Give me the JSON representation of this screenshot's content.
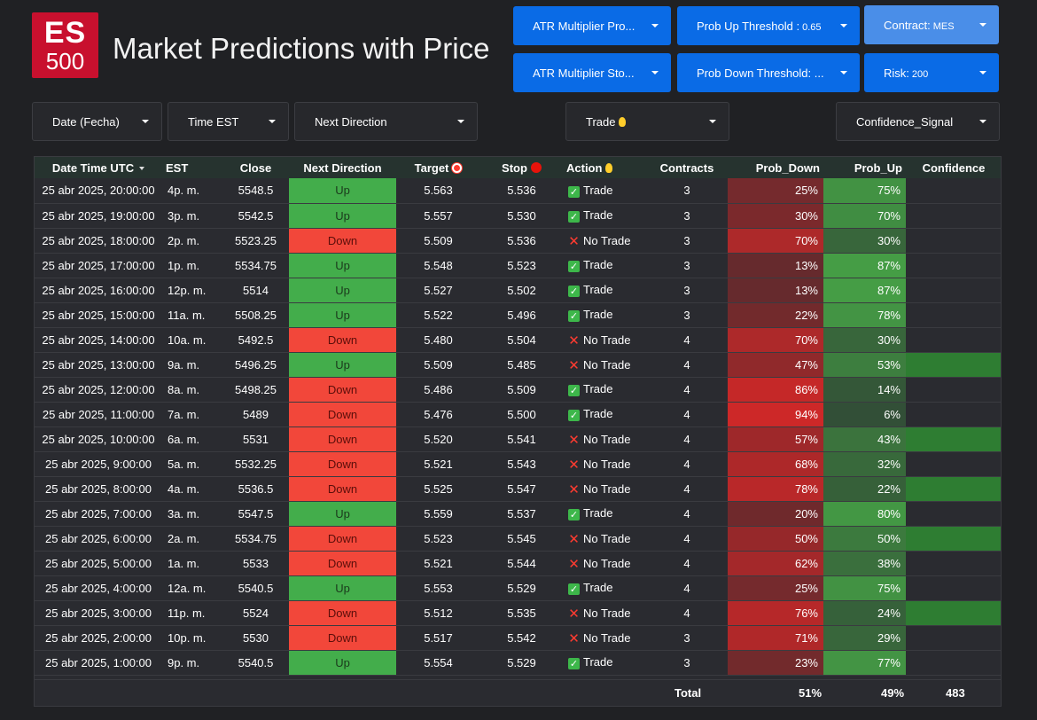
{
  "logo": {
    "line1": "ES",
    "line2": "500"
  },
  "title": "Market Predictions with Price",
  "controls": {
    "atr_multiplier_profit": "ATR Multiplier Pro...",
    "prob_up_threshold": "Prob Up Threshold :",
    "prob_up_value": "0.65",
    "contract": "Contract:",
    "contract_value": "MES",
    "atr_multiplier_stop": "ATR Multiplier Sto...",
    "prob_down_threshold": "Prob Down Threshold: ...",
    "risk": "Risk:",
    "risk_value": "200",
    "date": "Date (Fecha)",
    "time_est": "Time EST",
    "next_direction": "Next Direction",
    "trade": "Trade",
    "confidence_signal": "Confidence_Signal"
  },
  "colors": {
    "up": "#43ad4b",
    "down": "#f2473a",
    "confidence": "#2e7d32",
    "header_bg": "#26332f",
    "control_blue": "#0a6be6"
  },
  "table": {
    "headers": [
      "Date Time UTC",
      "EST",
      "Close",
      "Next Direction",
      "Target",
      "Stop",
      "Action",
      "Contracts",
      "Prob_Down",
      "Prob_Up",
      "Confidence"
    ],
    "rows": [
      {
        "dt": "25 abr 2025, 20:00:00",
        "est": "4p. m.",
        "close": "5548.5",
        "dir": "Up",
        "target": "5.563",
        "stop": "5.536",
        "action": "Trade",
        "contracts": "3",
        "pdown": "25%",
        "pup": "75%",
        "pdown_v": 25,
        "pup_v": 75,
        "conf": false
      },
      {
        "dt": "25 abr 2025, 19:00:00",
        "est": "3p. m.",
        "close": "5542.5",
        "dir": "Up",
        "target": "5.557",
        "stop": "5.530",
        "action": "Trade",
        "contracts": "3",
        "pdown": "30%",
        "pup": "70%",
        "pdown_v": 30,
        "pup_v": 70,
        "conf": false
      },
      {
        "dt": "25 abr 2025, 18:00:00",
        "est": "2p. m.",
        "close": "5523.25",
        "dir": "Down",
        "target": "5.509",
        "stop": "5.536",
        "action": "No Trade",
        "contracts": "3",
        "pdown": "70%",
        "pup": "30%",
        "pdown_v": 70,
        "pup_v": 30,
        "conf": false
      },
      {
        "dt": "25 abr 2025, 17:00:00",
        "est": "1p. m.",
        "close": "5534.75",
        "dir": "Up",
        "target": "5.548",
        "stop": "5.523",
        "action": "Trade",
        "contracts": "3",
        "pdown": "13%",
        "pup": "87%",
        "pdown_v": 13,
        "pup_v": 87,
        "conf": false
      },
      {
        "dt": "25 abr 2025, 16:00:00",
        "est": "12p. m.",
        "close": "5514",
        "dir": "Up",
        "target": "5.527",
        "stop": "5.502",
        "action": "Trade",
        "contracts": "3",
        "pdown": "13%",
        "pup": "87%",
        "pdown_v": 13,
        "pup_v": 87,
        "conf": false
      },
      {
        "dt": "25 abr 2025, 15:00:00",
        "est": "11a. m.",
        "close": "5508.25",
        "dir": "Up",
        "target": "5.522",
        "stop": "5.496",
        "action": "Trade",
        "contracts": "3",
        "pdown": "22%",
        "pup": "78%",
        "pdown_v": 22,
        "pup_v": 78,
        "conf": false
      },
      {
        "dt": "25 abr 2025, 14:00:00",
        "est": "10a. m.",
        "close": "5492.5",
        "dir": "Down",
        "target": "5.480",
        "stop": "5.504",
        "action": "No Trade",
        "contracts": "4",
        "pdown": "70%",
        "pup": "30%",
        "pdown_v": 70,
        "pup_v": 30,
        "conf": false
      },
      {
        "dt": "25 abr 2025, 13:00:00",
        "est": "9a. m.",
        "close": "5496.25",
        "dir": "Up",
        "target": "5.509",
        "stop": "5.485",
        "action": "No Trade",
        "contracts": "4",
        "pdown": "47%",
        "pup": "53%",
        "pdown_v": 47,
        "pup_v": 53,
        "conf": true
      },
      {
        "dt": "25 abr 2025, 12:00:00",
        "est": "8a. m.",
        "close": "5498.25",
        "dir": "Down",
        "target": "5.486",
        "stop": "5.509",
        "action": "Trade",
        "contracts": "4",
        "pdown": "86%",
        "pup": "14%",
        "pdown_v": 86,
        "pup_v": 14,
        "conf": false
      },
      {
        "dt": "25 abr 2025, 11:00:00",
        "est": "7a. m.",
        "close": "5489",
        "dir": "Down",
        "target": "5.476",
        "stop": "5.500",
        "action": "Trade",
        "contracts": "4",
        "pdown": "94%",
        "pup": "6%",
        "pdown_v": 94,
        "pup_v": 6,
        "conf": false
      },
      {
        "dt": "25 abr 2025, 10:00:00",
        "est": "6a. m.",
        "close": "5531",
        "dir": "Down",
        "target": "5.520",
        "stop": "5.541",
        "action": "No Trade",
        "contracts": "4",
        "pdown": "57%",
        "pup": "43%",
        "pdown_v": 57,
        "pup_v": 43,
        "conf": true
      },
      {
        "dt": "25 abr 2025, 9:00:00",
        "est": "5a. m.",
        "close": "5532.25",
        "dir": "Down",
        "target": "5.521",
        "stop": "5.543",
        "action": "No Trade",
        "contracts": "4",
        "pdown": "68%",
        "pup": "32%",
        "pdown_v": 68,
        "pup_v": 32,
        "conf": false
      },
      {
        "dt": "25 abr 2025, 8:00:00",
        "est": "4a. m.",
        "close": "5536.5",
        "dir": "Down",
        "target": "5.525",
        "stop": "5.547",
        "action": "No Trade",
        "contracts": "4",
        "pdown": "78%",
        "pup": "22%",
        "pdown_v": 78,
        "pup_v": 22,
        "conf": true
      },
      {
        "dt": "25 abr 2025, 7:00:00",
        "est": "3a. m.",
        "close": "5547.5",
        "dir": "Up",
        "target": "5.559",
        "stop": "5.537",
        "action": "Trade",
        "contracts": "4",
        "pdown": "20%",
        "pup": "80%",
        "pdown_v": 20,
        "pup_v": 80,
        "conf": false
      },
      {
        "dt": "25 abr 2025, 6:00:00",
        "est": "2a. m.",
        "close": "5534.75",
        "dir": "Down",
        "target": "5.523",
        "stop": "5.545",
        "action": "No Trade",
        "contracts": "4",
        "pdown": "50%",
        "pup": "50%",
        "pdown_v": 50,
        "pup_v": 50,
        "conf": true
      },
      {
        "dt": "25 abr 2025, 5:00:00",
        "est": "1a. m.",
        "close": "5533",
        "dir": "Down",
        "target": "5.521",
        "stop": "5.544",
        "action": "No Trade",
        "contracts": "4",
        "pdown": "62%",
        "pup": "38%",
        "pdown_v": 62,
        "pup_v": 38,
        "conf": false
      },
      {
        "dt": "25 abr 2025, 4:00:00",
        "est": "12a. m.",
        "close": "5540.5",
        "dir": "Up",
        "target": "5.553",
        "stop": "5.529",
        "action": "Trade",
        "contracts": "4",
        "pdown": "25%",
        "pup": "75%",
        "pdown_v": 25,
        "pup_v": 75,
        "conf": false
      },
      {
        "dt": "25 abr 2025, 3:00:00",
        "est": "11p. m.",
        "close": "5524",
        "dir": "Down",
        "target": "5.512",
        "stop": "5.535",
        "action": "No Trade",
        "contracts": "4",
        "pdown": "76%",
        "pup": "24%",
        "pdown_v": 76,
        "pup_v": 24,
        "conf": true
      },
      {
        "dt": "25 abr 2025, 2:00:00",
        "est": "10p. m.",
        "close": "5530",
        "dir": "Down",
        "target": "5.517",
        "stop": "5.542",
        "action": "No Trade",
        "contracts": "3",
        "pdown": "71%",
        "pup": "29%",
        "pdown_v": 71,
        "pup_v": 29,
        "conf": false
      },
      {
        "dt": "25 abr 2025, 1:00:00",
        "est": "9p. m.",
        "close": "5540.5",
        "dir": "Up",
        "target": "5.554",
        "stop": "5.529",
        "action": "Trade",
        "contracts": "3",
        "pdown": "23%",
        "pup": "77%",
        "pdown_v": 23,
        "pup_v": 77,
        "conf": false
      }
    ],
    "total": {
      "label": "Total",
      "pdown": "51%",
      "pup": "49%",
      "conf": "483"
    }
  }
}
